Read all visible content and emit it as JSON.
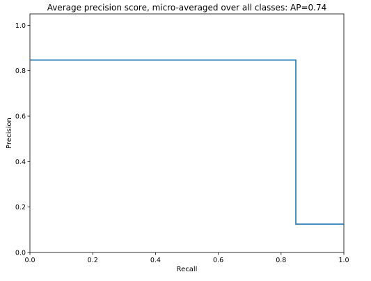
{
  "chart_data": {
    "type": "line",
    "title": "Average precision score, micro-averaged over all classes: AP=0.74",
    "xlabel": "Recall",
    "ylabel": "Precision",
    "xlim": [
      0.0,
      1.0
    ],
    "ylim": [
      0.0,
      1.05
    ],
    "grid": false,
    "drawstyle": "steps-post",
    "x_ticks": [
      "0.0",
      "0.2",
      "0.4",
      "0.6",
      "0.8",
      "1.0"
    ],
    "y_ticks": [
      "0.0",
      "0.2",
      "0.4",
      "0.6",
      "0.8",
      "1.0"
    ],
    "x_tick_values": [
      0.0,
      0.2,
      0.4,
      0.6,
      0.8,
      1.0
    ],
    "y_tick_values": [
      0.0,
      0.2,
      0.4,
      0.6,
      0.8,
      1.0
    ],
    "series": [
      {
        "color": "#1f77b4",
        "x": [
          0.0,
          0.847,
          0.847,
          1.0
        ],
        "y": [
          0.847,
          0.847,
          0.125,
          0.125
        ]
      }
    ]
  }
}
